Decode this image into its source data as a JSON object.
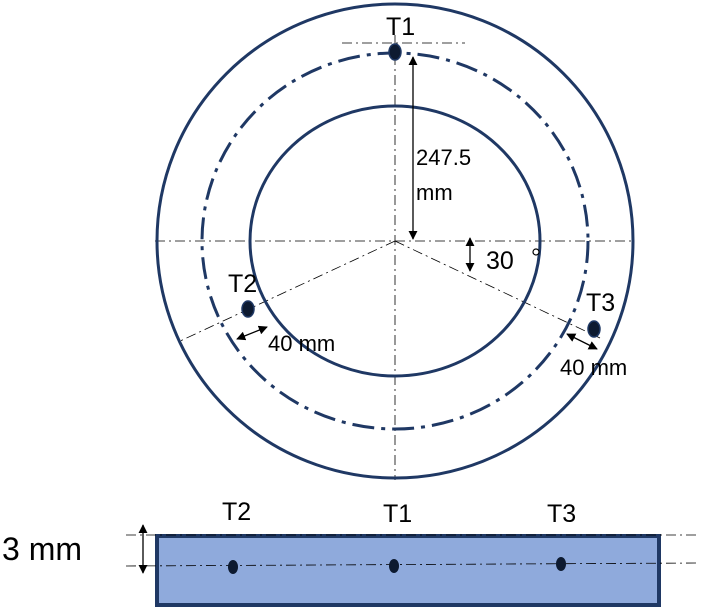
{
  "top_view": {
    "thermocouples": {
      "t1": "T1",
      "t2": "T2",
      "t3": "T3"
    },
    "radius_value": "247.5",
    "radius_unit": "mm",
    "angle_value": "30",
    "spacing_t2": "40 mm",
    "spacing_t3": "40 mm"
  },
  "side_view": {
    "thermocouples": {
      "t2": "T2",
      "t1": "T1",
      "t3": "T3"
    },
    "thickness": "3 mm"
  },
  "colors": {
    "outline": "#1f3864",
    "plate_fill": "#8faadc"
  }
}
